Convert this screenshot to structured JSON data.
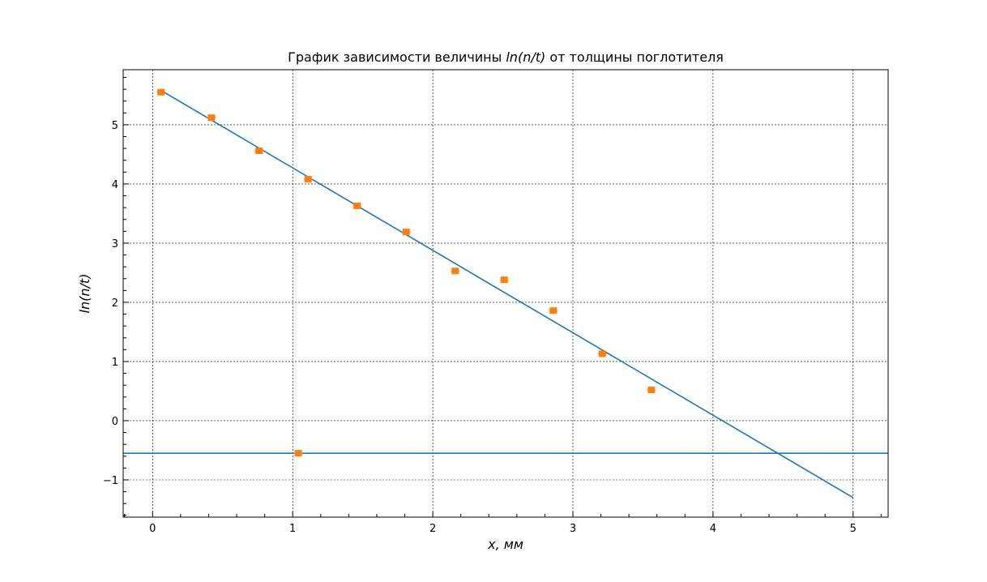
{
  "chart_data": {
    "type": "scatter",
    "title": {
      "prefix": "График зависимости величины ",
      "math": "ln(n/t)",
      "suffix": " от толщины поглотителя"
    },
    "xlabel": "x, мм",
    "ylabel": "ln(n/t)",
    "xlim": [
      -0.21,
      5.25
    ],
    "ylim": [
      -1.63,
      5.93
    ],
    "xticks": [
      0,
      1,
      2,
      3,
      4,
      5
    ],
    "xtick_labels": [
      "0",
      "1",
      "2",
      "3",
      "4",
      "5"
    ],
    "yticks": [
      -1,
      0,
      1,
      2,
      3,
      4,
      5
    ],
    "ytick_labels": [
      "−1",
      "0",
      "1",
      "2",
      "3",
      "4",
      "5"
    ],
    "x_minor_step": 0.2,
    "y_minor_step": 0.2,
    "grid": true,
    "series": [
      {
        "name": "measurements",
        "kind": "markers",
        "color": "#ff7f0e",
        "x": [
          0.06,
          0.42,
          0.76,
          1.11,
          1.46,
          1.81,
          2.16,
          2.51,
          2.86,
          3.21,
          3.56,
          1.04
        ],
        "y": [
          5.55,
          5.12,
          4.56,
          4.08,
          3.63,
          3.19,
          2.53,
          2.38,
          1.86,
          1.13,
          0.52,
          -0.55
        ]
      },
      {
        "name": "linear fit",
        "kind": "line",
        "color": "#1f77b4",
        "x": [
          0.06,
          5.0
        ],
        "y": [
          5.58,
          -1.3
        ]
      },
      {
        "name": "horizontal line",
        "kind": "hline",
        "color": "#1f77b4",
        "y": -0.55
      }
    ]
  }
}
